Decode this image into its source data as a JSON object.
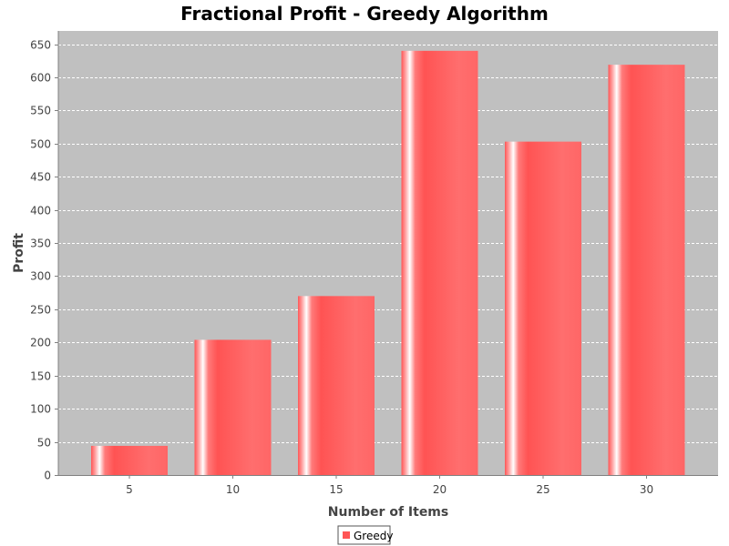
{
  "chart_data": {
    "type": "bar",
    "title": "Fractional Profit - Greedy Algorithm",
    "xlabel": "Number of Items",
    "ylabel": "Profit",
    "categories": [
      "5",
      "10",
      "15",
      "20",
      "25",
      "30"
    ],
    "series": [
      {
        "name": "Greedy",
        "values": [
          44,
          204,
          270,
          640,
          503,
          619
        ],
        "color": "#ff5555"
      }
    ],
    "ylim": [
      0,
      670
    ],
    "yticks": [
      0,
      50,
      100,
      150,
      200,
      250,
      300,
      350,
      400,
      450,
      500,
      550,
      600,
      650
    ],
    "grid": true,
    "legend_position": "bottom-center",
    "plot_background": "#c0c0c0",
    "gridline_color": "#ffffff"
  }
}
